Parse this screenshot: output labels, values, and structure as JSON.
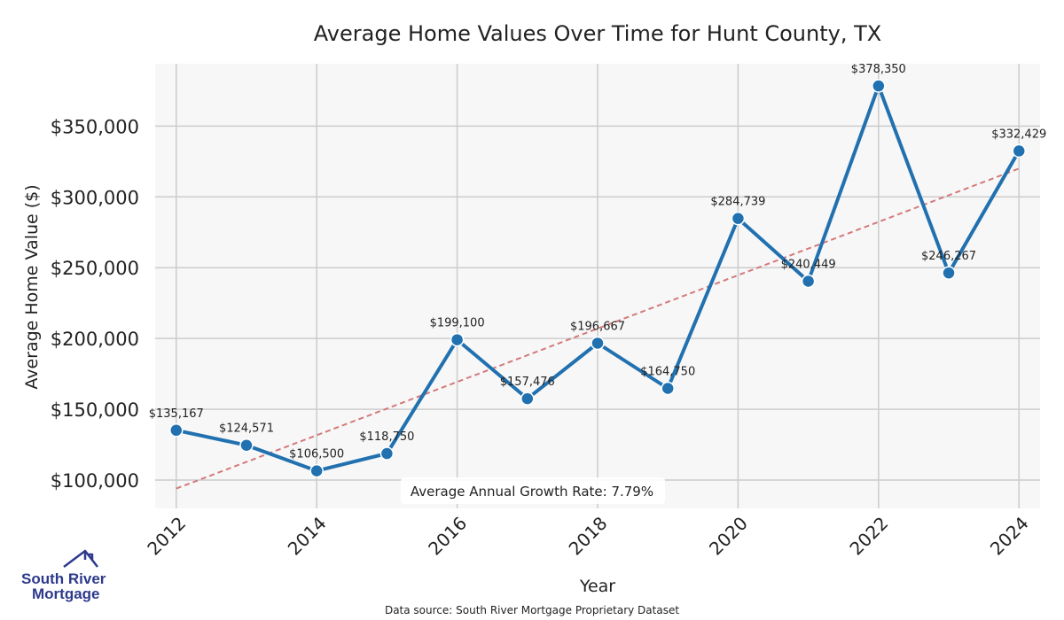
{
  "chart_data": {
    "type": "line",
    "title": "Average Home Values Over Time for Hunt County, TX",
    "xlabel": "Year",
    "ylabel": "Average Home Value ($)",
    "x": [
      2012,
      2013,
      2014,
      2015,
      2016,
      2017,
      2018,
      2019,
      2020,
      2021,
      2022,
      2023,
      2024
    ],
    "values": [
      135167,
      124571,
      106500,
      118750,
      199100,
      157476,
      196667,
      164750,
      284739,
      240449,
      378350,
      246267,
      332429
    ],
    "data_labels": [
      "$135,167",
      "$124,571",
      "$106,500",
      "$118,750",
      "$199,100",
      "$157,476",
      "$196,667",
      "$164,750",
      "$284,739",
      "$240,449",
      "$378,350",
      "$246,267",
      "$332,429"
    ],
    "x_ticks": [
      "2012",
      "2014",
      "2016",
      "2018",
      "2020",
      "2022",
      "2024"
    ],
    "x_tick_values": [
      2012,
      2014,
      2016,
      2018,
      2020,
      2022,
      2024
    ],
    "y_ticks": [
      "$100,000",
      "$150,000",
      "$200,000",
      "$250,000",
      "$300,000",
      "$350,000"
    ],
    "y_tick_values": [
      100000,
      150000,
      200000,
      250000,
      300000,
      350000
    ],
    "xlim": [
      2011.7,
      2024.3
    ],
    "ylim": [
      80000,
      394000
    ],
    "trendline": {
      "x": [
        2012,
        2024
      ],
      "y": [
        94000,
        320000
      ]
    },
    "annotation": "Average Annual Growth Rate: 7.79%",
    "grid": true,
    "line_color": "#2171b0",
    "trend_color": "#d47a7a",
    "plot_bg": "#f7f7f7",
    "grid_color": "#cccccc"
  },
  "source_note": "Data source: South River Mortgage Proprietary Dataset",
  "logo": {
    "line1": "South River",
    "line2": "Mortgage",
    "icon": "house-roof-icon",
    "color": "#2d3a8c"
  }
}
